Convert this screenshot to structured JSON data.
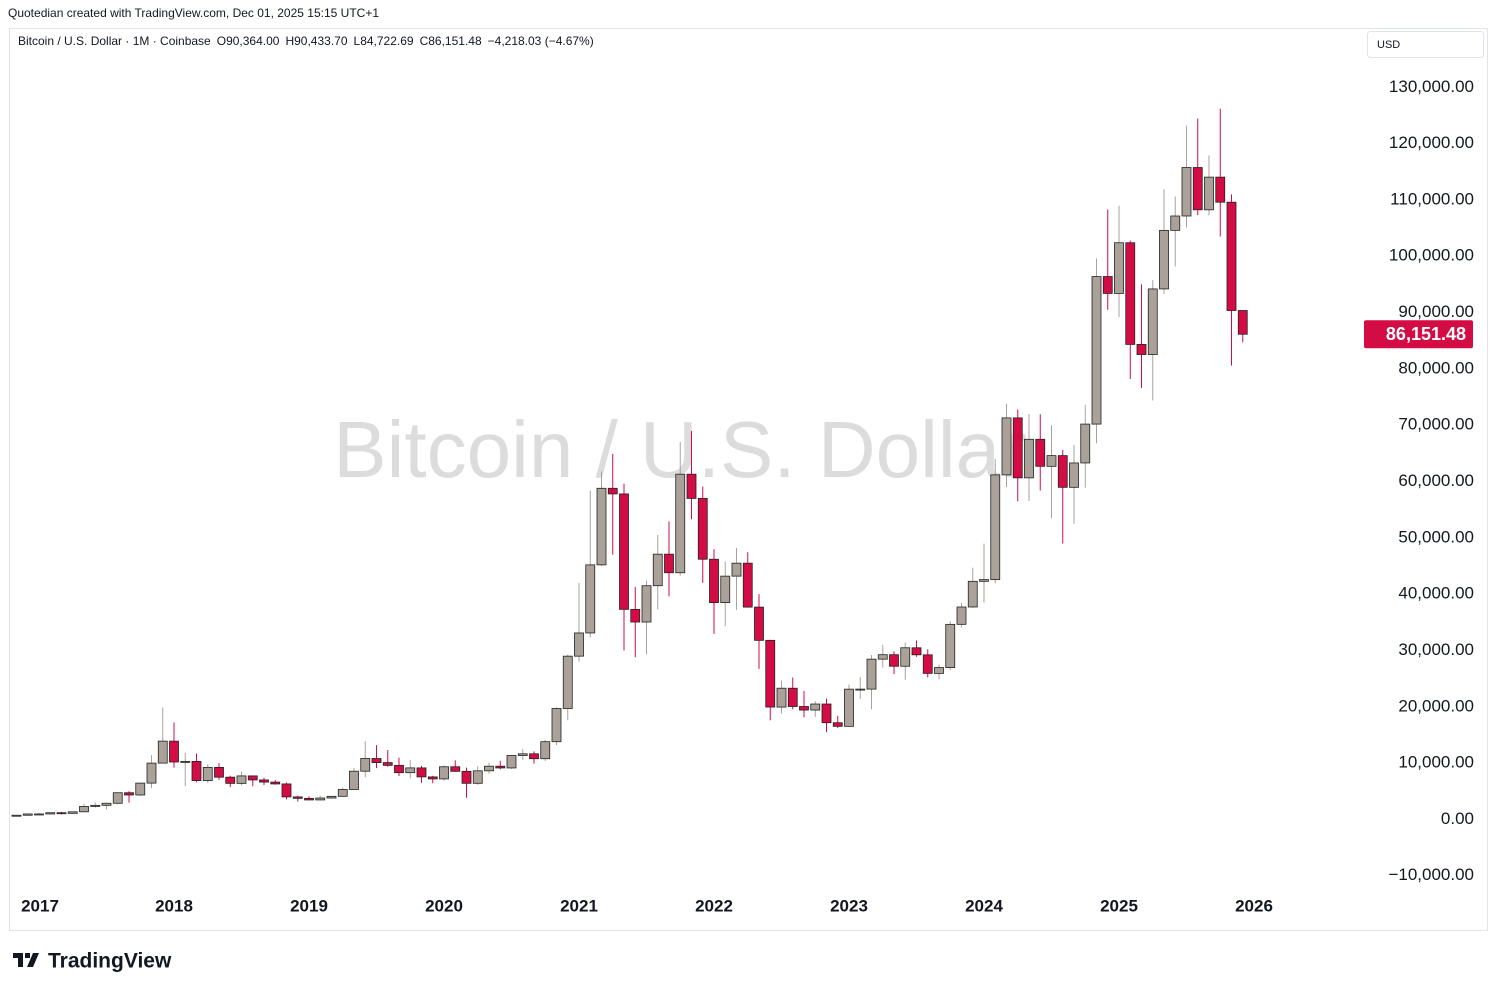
{
  "header": {
    "credit": "Quotedian created with TradingView.com, Dec 01, 2025 15:15 UTC+1",
    "symbol": "Bitcoin / U.S. Dollar · 1M · Coinbase",
    "ohlc": [
      "O90,364.00",
      "H90,433.70",
      "L84,722.69",
      "C86,151.48"
    ],
    "change": "−4,218.03 (−4.67%)",
    "currency": "USD",
    "watermark": "Bitcoin / U.S. Dollar",
    "brand": "TradingView"
  },
  "chart_data": {
    "type": "candlestick",
    "categories": [
      null,
      null,
      "2017",
      null,
      null,
      null,
      null,
      null,
      null,
      null,
      null,
      null,
      null,
      null,
      "2018",
      null,
      null,
      null,
      null,
      null,
      null,
      null,
      null,
      null,
      null,
      null,
      "2019",
      null,
      null,
      null,
      null,
      null,
      null,
      null,
      null,
      null,
      null,
      null,
      "2020",
      null,
      null,
      null,
      null,
      null,
      null,
      null,
      null,
      null,
      null,
      null,
      "2021",
      null,
      null,
      null,
      null,
      null,
      null,
      null,
      null,
      null,
      null,
      null,
      "2022",
      null,
      null,
      null,
      null,
      null,
      null,
      null,
      null,
      null,
      null,
      null,
      "2023",
      null,
      null,
      null,
      null,
      null,
      null,
      null,
      null,
      null,
      null,
      null,
      "2024",
      null,
      null,
      null,
      null,
      null,
      null,
      null,
      null,
      null,
      null,
      null,
      "2025",
      null,
      null,
      null,
      null,
      null,
      null,
      null,
      null,
      null,
      null,
      null,
      "2026"
    ],
    "open": [
      700,
      742,
      968,
      970,
      1190,
      1080,
      1350,
      2300,
      2500,
      2870,
      4740,
      4340,
      6450,
      10000,
      13900,
      10200,
      10300,
      6900,
      9240,
      7500,
      6400,
      7730,
      7010,
      6630,
      6300,
      4000,
      3740,
      3460,
      3800,
      4100,
      5320,
      8560,
      10820,
      10090,
      9600,
      8300,
      9150,
      7550,
      7190,
      9350,
      8540,
      6410,
      8630,
      9450,
      9140,
      11350,
      11650,
      10780,
      13800,
      19700,
      28990,
      33110,
      45200,
      58800,
      57800,
      37300,
      35050,
      41500,
      47100,
      43800,
      61300,
      57000,
      46200,
      38500,
      43200,
      45500,
      37700,
      31800,
      19950,
      23300,
      20050,
      19420,
      20490,
      17170,
      16530,
      23130,
      23140,
      28460,
      29250,
      27200,
      30480,
      29230,
      25930,
      26960,
      34640,
      37720,
      42280,
      42580,
      61180,
      71300,
      60650,
      67500,
      62700,
      64600,
      58970,
      63300,
      70200,
      96400,
      93400,
      102400,
      84350,
      82550,
      94200,
      104600,
      107150,
      115760,
      108250,
      114050,
      109600,
      90364,
      null
    ],
    "high": [
      750,
      975,
      1150,
      1210,
      1350,
      1350,
      2760,
      3000,
      2950,
      4750,
      5000,
      6450,
      11400,
      19900,
      17200,
      11800,
      11700,
      9800,
      10000,
      7770,
      8500,
      7760,
      7410,
      7000,
      6550,
      4200,
      4100,
      4190,
      4150,
      5640,
      9100,
      13880,
      13200,
      12320,
      10950,
      10540,
      9500,
      7750,
      9600,
      10500,
      9200,
      9460,
      10080,
      10400,
      11450,
      12480,
      12080,
      14100,
      19900,
      29300,
      42000,
      58400,
      61800,
      64900,
      59600,
      41300,
      42400,
      50500,
      52900,
      67000,
      69000,
      59100,
      48000,
      45800,
      48200,
      47450,
      40000,
      31900,
      24650,
      25200,
      22800,
      20980,
      21450,
      18400,
      23950,
      25250,
      29200,
      31000,
      29850,
      31400,
      31800,
      30200,
      27500,
      35200,
      38450,
      44700,
      48970,
      64000,
      73800,
      72800,
      71980,
      71950,
      70000,
      65600,
      66500,
      73600,
      99600,
      108300,
      109000,
      102800,
      95000,
      95750,
      111900,
      110600,
      123200,
      124450,
      117900,
      126200,
      111000,
      90433.7,
      null
    ],
    "low": [
      690,
      740,
      752,
      915,
      890,
      1060,
      1350,
      2100,
      1800,
      2700,
      2980,
      4150,
      5550,
      10000,
      9200,
      5900,
      6600,
      6450,
      7050,
      5750,
      6070,
      5880,
      6100,
      6170,
      3550,
      3200,
      3390,
      3400,
      3690,
      4040,
      5300,
      7500,
      9100,
      9350,
      7700,
      7300,
      6500,
      6420,
      6850,
      8450,
      3850,
      6150,
      8100,
      8900,
      8950,
      10550,
      9900,
      10370,
      13200,
      17600,
      28000,
      32300,
      45000,
      47000,
      30000,
      28800,
      29300,
      37300,
      39600,
      43300,
      53300,
      42000,
      32950,
      34300,
      37200,
      37600,
      26700,
      17600,
      18800,
      19550,
      18150,
      18200,
      15480,
      16250,
      16500,
      21400,
      19550,
      26950,
      25800,
      24800,
      28860,
      25200,
      24900,
      26550,
      34100,
      37600,
      38500,
      41900,
      59000,
      56500,
      56550,
      58400,
      53500,
      49000,
      52500,
      58900,
      66800,
      90500,
      89200,
      78200,
      76600,
      74400,
      93300,
      98200,
      105100,
      107300,
      107250,
      103500,
      80600,
      84722.69,
      null
    ],
    "close": [
      742,
      968,
      970,
      1190,
      1080,
      1350,
      2300,
      2500,
      2870,
      4740,
      4340,
      6450,
      10000,
      13900,
      10200,
      10300,
      6900,
      9240,
      7500,
      6400,
      7730,
      7010,
      6630,
      6300,
      4000,
      3740,
      3460,
      3800,
      4100,
      5320,
      8560,
      10820,
      10090,
      9600,
      8300,
      9150,
      7550,
      7190,
      9350,
      8540,
      6410,
      8630,
      9450,
      9140,
      11350,
      11650,
      10780,
      13800,
      19700,
      28990,
      33110,
      45200,
      58800,
      57800,
      37300,
      35050,
      41500,
      47100,
      43800,
      61300,
      57000,
      46200,
      38500,
      43200,
      45500,
      37700,
      31800,
      19950,
      23300,
      20050,
      19420,
      20490,
      17170,
      16530,
      23130,
      23140,
      28460,
      29250,
      27200,
      30480,
      29230,
      25930,
      26960,
      34640,
      37720,
      42280,
      42580,
      61180,
      71300,
      60650,
      67500,
      62700,
      64600,
      58970,
      63300,
      70200,
      96400,
      93400,
      102400,
      84350,
      82550,
      94200,
      104600,
      107150,
      115760,
      108250,
      114050,
      109600,
      90364,
      86151.48,
      null
    ],
    "up_color": "#aaa299",
    "down_color": "#d40c45",
    "border_color": "#222222",
    "last_price": {
      "value": 86151.48,
      "label": "86,151.48"
    },
    "ylim": [
      -12000,
      140000
    ],
    "yticks": [
      {
        "value": -10000,
        "label": "−10,000.00"
      },
      {
        "value": 0,
        "label": "0.00"
      },
      {
        "value": 10000,
        "label": "10,000.00"
      },
      {
        "value": 20000,
        "label": "20,000.00"
      },
      {
        "value": 30000,
        "label": "30,000.00"
      },
      {
        "value": 40000,
        "label": "40,000.00"
      },
      {
        "value": 50000,
        "label": "50,000.00"
      },
      {
        "value": 60000,
        "label": "60,000.00"
      },
      {
        "value": 70000,
        "label": "70,000.00"
      },
      {
        "value": 80000,
        "label": "80,000.00"
      },
      {
        "value": 90000,
        "label": "90,000.00"
      },
      {
        "value": 100000,
        "label": "100,000.00"
      },
      {
        "value": 110000,
        "label": "110,000.00"
      },
      {
        "value": 120000,
        "label": "120,000.00"
      },
      {
        "value": 130000,
        "label": "130,000.00"
      }
    ],
    "grid": false
  }
}
